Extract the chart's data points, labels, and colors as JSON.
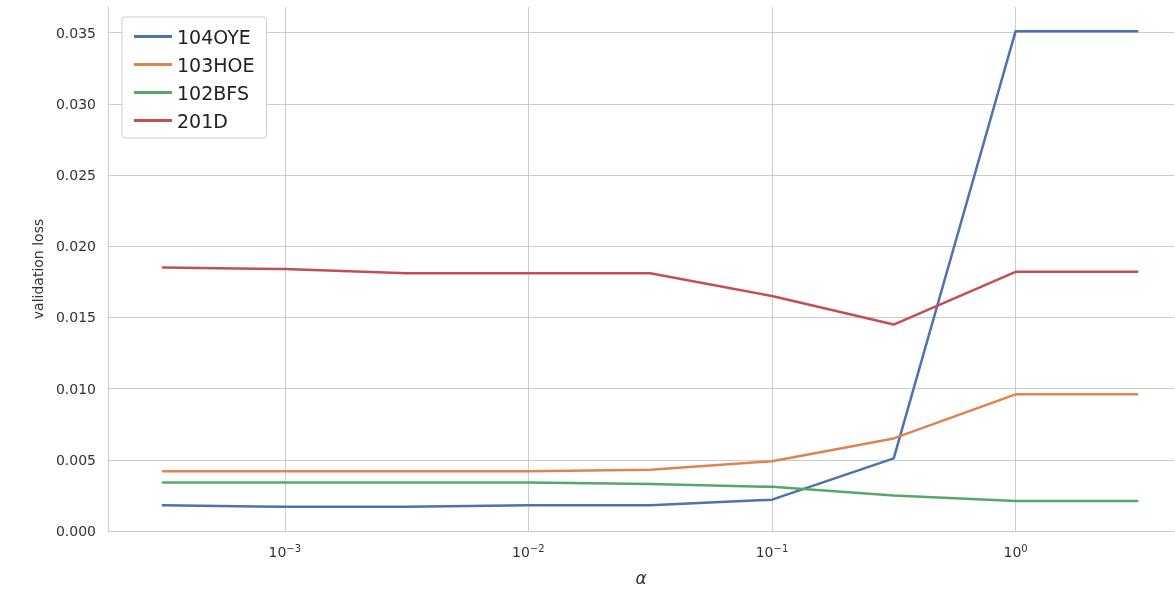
{
  "chart_data": {
    "type": "line",
    "xlabel": "α",
    "ylabel": "validation loss",
    "x": [
      0.000316,
      0.001,
      0.00316,
      0.01,
      0.0316,
      0.1,
      0.316,
      1,
      3.16
    ],
    "series": [
      {
        "name": "104OYE",
        "color": "#4c72b0",
        "values": [
          0.0018,
          0.0017,
          0.0017,
          0.0018,
          0.0018,
          0.0022,
          0.0051,
          0.0351,
          0.0351
        ]
      },
      {
        "name": "103HOE",
        "color": "#dd8452",
        "values": [
          0.0042,
          0.0042,
          0.0042,
          0.0042,
          0.0043,
          0.0049,
          0.0065,
          0.0096,
          0.0096
        ]
      },
      {
        "name": "102BFS",
        "color": "#55a868",
        "values": [
          0.0034,
          0.0034,
          0.0034,
          0.0034,
          0.0033,
          0.0031,
          0.0025,
          0.0021,
          0.0021
        ]
      },
      {
        "name": "201D",
        "color": "#c44e52",
        "values": [
          0.0185,
          0.0184,
          0.0181,
          0.0181,
          0.0181,
          0.0165,
          0.0145,
          0.0182,
          0.0182
        ]
      }
    ],
    "log": "x",
    "xlim": [
      0.000188,
      4.47
    ],
    "xticks": [
      {
        "value": 0.001,
        "label": "10$^{−3}$"
      },
      {
        "value": 0.01,
        "label": "10$^{−2}$"
      },
      {
        "value": 0.1,
        "label": "10$^{−1}$"
      },
      {
        "value": 1,
        "label": "10$^{0}$"
      }
    ],
    "ylim": [
      0,
      0.0368
    ],
    "yticks": [
      {
        "value": 0,
        "label": "0.000"
      },
      {
        "value": 0.005,
        "label": "0.005"
      },
      {
        "value": 0.01,
        "label": "0.010"
      },
      {
        "value": 0.015,
        "label": "0.015"
      },
      {
        "value": 0.02,
        "label": "0.020"
      },
      {
        "value": 0.025,
        "label": "0.025"
      },
      {
        "value": 0.03,
        "label": "0.030"
      },
      {
        "value": 0.035,
        "label": "0.035"
      }
    ],
    "grid": true,
    "legend": "top left",
    "marker": "none",
    "line_style": "solid"
  }
}
